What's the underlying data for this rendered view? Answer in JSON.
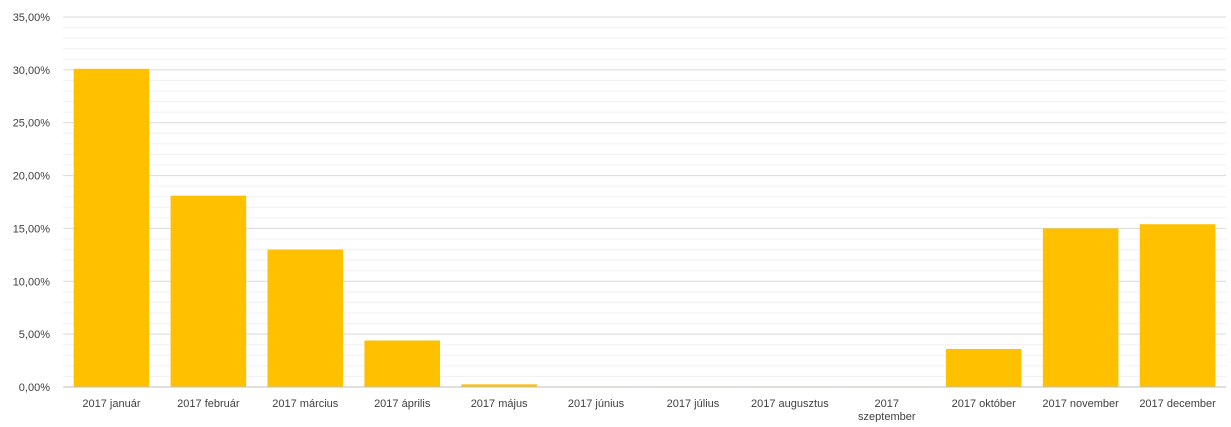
{
  "chart_data": {
    "type": "bar",
    "title": "",
    "xlabel": "",
    "ylabel": "",
    "categories": [
      [
        "2017 január"
      ],
      [
        "2017 február"
      ],
      [
        "2017 március"
      ],
      [
        "2017 április"
      ],
      [
        "2017 május"
      ],
      [
        "2017 június"
      ],
      [
        "2017 július"
      ],
      [
        "2017 augusztus"
      ],
      [
        "2017",
        "szeptember"
      ],
      [
        "2017 október"
      ],
      [
        "2017 november"
      ],
      [
        "2017 december"
      ]
    ],
    "values": [
      30.1,
      18.1,
      13.0,
      4.4,
      0.25,
      0.05,
      0.05,
      0.05,
      0.05,
      3.6,
      15.0,
      15.4
    ],
    "value_unit": "%",
    "ylim": [
      0,
      35
    ],
    "yticks": [
      "0,00%",
      "5,00%",
      "10,00%",
      "15,00%",
      "20,00%",
      "25,00%",
      "30,00%",
      "35,00%"
    ],
    "ytick_values": [
      0,
      5,
      10,
      15,
      20,
      25,
      30,
      35
    ],
    "grid": true,
    "minor_grid": true,
    "legend": "none",
    "bar_color": "#FFC000",
    "grid_color": "#D9D9D9",
    "axis_color": "#BFBFBF",
    "text_color": "#404040"
  }
}
